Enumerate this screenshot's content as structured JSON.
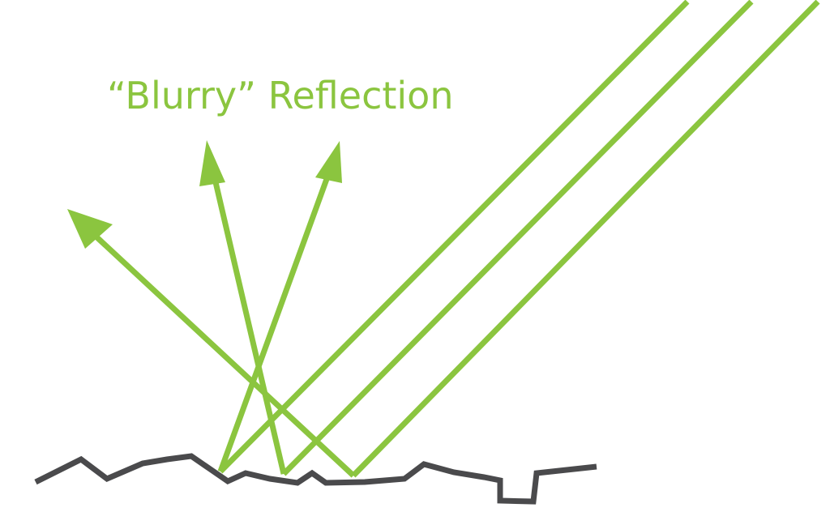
{
  "diagram": {
    "title": "“Blurry” Reflection",
    "colors": {
      "ray": "#8bc53f",
      "surface": "#4a4a4c",
      "background": "#ffffff"
    }
  }
}
